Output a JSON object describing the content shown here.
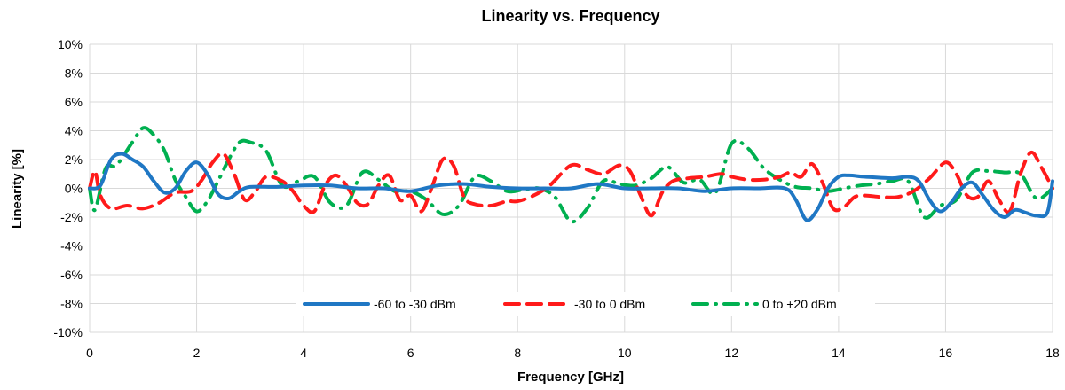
{
  "chart_data": {
    "type": "line",
    "title": "Linearity vs. Frequency",
    "xlabel": "Frequency [GHz]",
    "ylabel": "Linearity [%]",
    "xlim": [
      0,
      18
    ],
    "ylim": [
      -10,
      10
    ],
    "x_ticks": [
      "0",
      "2",
      "4",
      "6",
      "8",
      "10",
      "12",
      "14",
      "16",
      "18"
    ],
    "y_ticks": [
      "10%",
      "8%",
      "6%",
      "4%",
      "2%",
      "0%",
      "-2%",
      "-4%",
      "-6%",
      "-8%",
      "-10%"
    ],
    "grid": true,
    "legend_position": "bottom-center",
    "series": [
      {
        "name": "-60 to -30 dBm",
        "color": "#1f77c4",
        "style": "solid",
        "x": [
          0,
          0.2,
          0.4,
          0.6,
          0.8,
          1.0,
          1.2,
          1.4,
          1.6,
          1.8,
          2.0,
          2.2,
          2.4,
          2.6,
          2.8,
          3.0,
          3.5,
          4.0,
          4.5,
          5.0,
          5.5,
          6.0,
          6.5,
          7.0,
          7.5,
          8.0,
          8.5,
          9.0,
          9.5,
          10.0,
          10.5,
          11.0,
          11.5,
          12.0,
          12.5,
          13.0,
          13.2,
          13.4,
          13.6,
          13.8,
          14.0,
          14.2,
          14.5,
          15.0,
          15.3,
          15.5,
          15.7,
          15.9,
          16.1,
          16.3,
          16.5,
          16.7,
          16.9,
          17.1,
          17.3,
          17.5,
          17.7,
          17.9,
          18.0
        ],
        "y": [
          0,
          0.2,
          2.0,
          2.4,
          2.0,
          1.5,
          0.5,
          -0.3,
          0,
          1.2,
          1.8,
          1.0,
          -0.4,
          -0.7,
          -0.2,
          0.1,
          0.1,
          0.2,
          0.2,
          0.0,
          0.0,
          -0.2,
          0.2,
          0.3,
          0.1,
          0.0,
          0.0,
          0.0,
          0.3,
          0.0,
          0.0,
          0.0,
          -0.2,
          0.0,
          0.0,
          0.0,
          -0.8,
          -2.2,
          -1.5,
          0.0,
          0.8,
          0.9,
          0.8,
          0.7,
          0.8,
          0.5,
          -0.8,
          -1.6,
          -1.0,
          0.0,
          0.4,
          -0.5,
          -1.5,
          -2.0,
          -1.5,
          -1.7,
          -1.9,
          -1.7,
          0.5
        ]
      },
      {
        "name": "-30 to 0 dBm",
        "color": "#ff1a1a",
        "style": "dash",
        "x": [
          0,
          0.1,
          0.2,
          0.4,
          0.7,
          1.0,
          1.3,
          1.6,
          1.9,
          2.1,
          2.3,
          2.5,
          2.7,
          2.9,
          3.1,
          3.3,
          3.6,
          3.8,
          4.0,
          4.2,
          4.4,
          4.6,
          4.8,
          5.0,
          5.2,
          5.4,
          5.6,
          5.8,
          6.0,
          6.2,
          6.4,
          6.6,
          6.8,
          7.0,
          7.2,
          7.5,
          7.8,
          8.0,
          8.3,
          8.6,
          9.0,
          9.3,
          9.6,
          9.9,
          10.1,
          10.3,
          10.5,
          10.7,
          10.9,
          11.2,
          11.5,
          11.8,
          12.0,
          12.3,
          12.6,
          12.9,
          13.1,
          13.3,
          13.5,
          13.7,
          13.9,
          14.1,
          14.3,
          14.5,
          14.8,
          15.1,
          15.4,
          15.7,
          16.0,
          16.2,
          16.4,
          16.6,
          16.8,
          17.0,
          17.2,
          17.4,
          17.6,
          17.8,
          18.0
        ],
        "y": [
          0,
          1.2,
          -0.5,
          -1.4,
          -1.2,
          -1.4,
          -1.0,
          -0.3,
          -0.2,
          0.6,
          1.8,
          2.4,
          1.0,
          -0.8,
          -0.2,
          0.8,
          0.5,
          -0.2,
          -1.2,
          -1.6,
          0.2,
          0.9,
          0.2,
          -1.0,
          -1.1,
          0.2,
          0.9,
          -0.8,
          -0.5,
          -1.6,
          0.1,
          2.0,
          1.6,
          -0.6,
          -1.1,
          -1.2,
          -0.9,
          -0.9,
          -0.5,
          0.2,
          1.6,
          1.3,
          1.0,
          1.6,
          1.2,
          -0.5,
          -1.9,
          -0.3,
          0.5,
          0.7,
          0.8,
          1.0,
          0.8,
          0.6,
          0.6,
          0.8,
          1.1,
          0.8,
          1.7,
          0.4,
          -1.4,
          -1.3,
          -0.6,
          -0.5,
          -0.6,
          -0.6,
          -0.2,
          0.7,
          1.8,
          1.0,
          -0.5,
          -0.6,
          0.5,
          -0.8,
          -1.6,
          1.0,
          2.5,
          1.4,
          0.0
        ]
      },
      {
        "name": "0 to +20 dBm",
        "color": "#00b050",
        "style": "dashdot",
        "x": [
          0,
          0.1,
          0.3,
          0.5,
          0.8,
          1.0,
          1.2,
          1.4,
          1.6,
          1.8,
          2.0,
          2.2,
          2.4,
          2.6,
          2.8,
          3.0,
          3.3,
          3.6,
          3.9,
          4.2,
          4.5,
          4.8,
          5.1,
          5.4,
          5.7,
          6.0,
          6.3,
          6.6,
          6.9,
          7.2,
          7.5,
          7.8,
          8.1,
          8.4,
          8.7,
          9.0,
          9.3,
          9.6,
          9.9,
          10.2,
          10.5,
          10.8,
          11.1,
          11.4,
          11.7,
          12.0,
          12.3,
          12.6,
          12.9,
          13.2,
          13.5,
          13.8,
          14.1,
          14.4,
          14.7,
          15.0,
          15.3,
          15.6,
          15.9,
          16.2,
          16.5,
          16.8,
          17.1,
          17.4,
          17.7,
          18.0
        ],
        "y": [
          0,
          -1.5,
          1.4,
          1.6,
          3.2,
          4.2,
          3.7,
          2.6,
          0.6,
          -0.6,
          -1.6,
          -0.9,
          0.5,
          2.0,
          3.2,
          3.2,
          2.6,
          0.2,
          0.5,
          0.8,
          -1.0,
          -1.2,
          1.1,
          0.6,
          -0.2,
          -0.2,
          -0.8,
          -1.8,
          -1.2,
          0.8,
          0.5,
          -0.2,
          -0.1,
          0.0,
          -0.6,
          -2.3,
          -1.4,
          0.5,
          0.3,
          0.2,
          0.7,
          1.5,
          0.4,
          0.6,
          -0.3,
          3.1,
          2.8,
          1.4,
          0.6,
          0.1,
          0.0,
          -0.2,
          0.0,
          0.2,
          0.3,
          0.5,
          0.5,
          -2.0,
          -1.2,
          -0.8,
          1.1,
          1.2,
          1.1,
          1.0,
          -0.7,
          0.0
        ]
      }
    ]
  }
}
